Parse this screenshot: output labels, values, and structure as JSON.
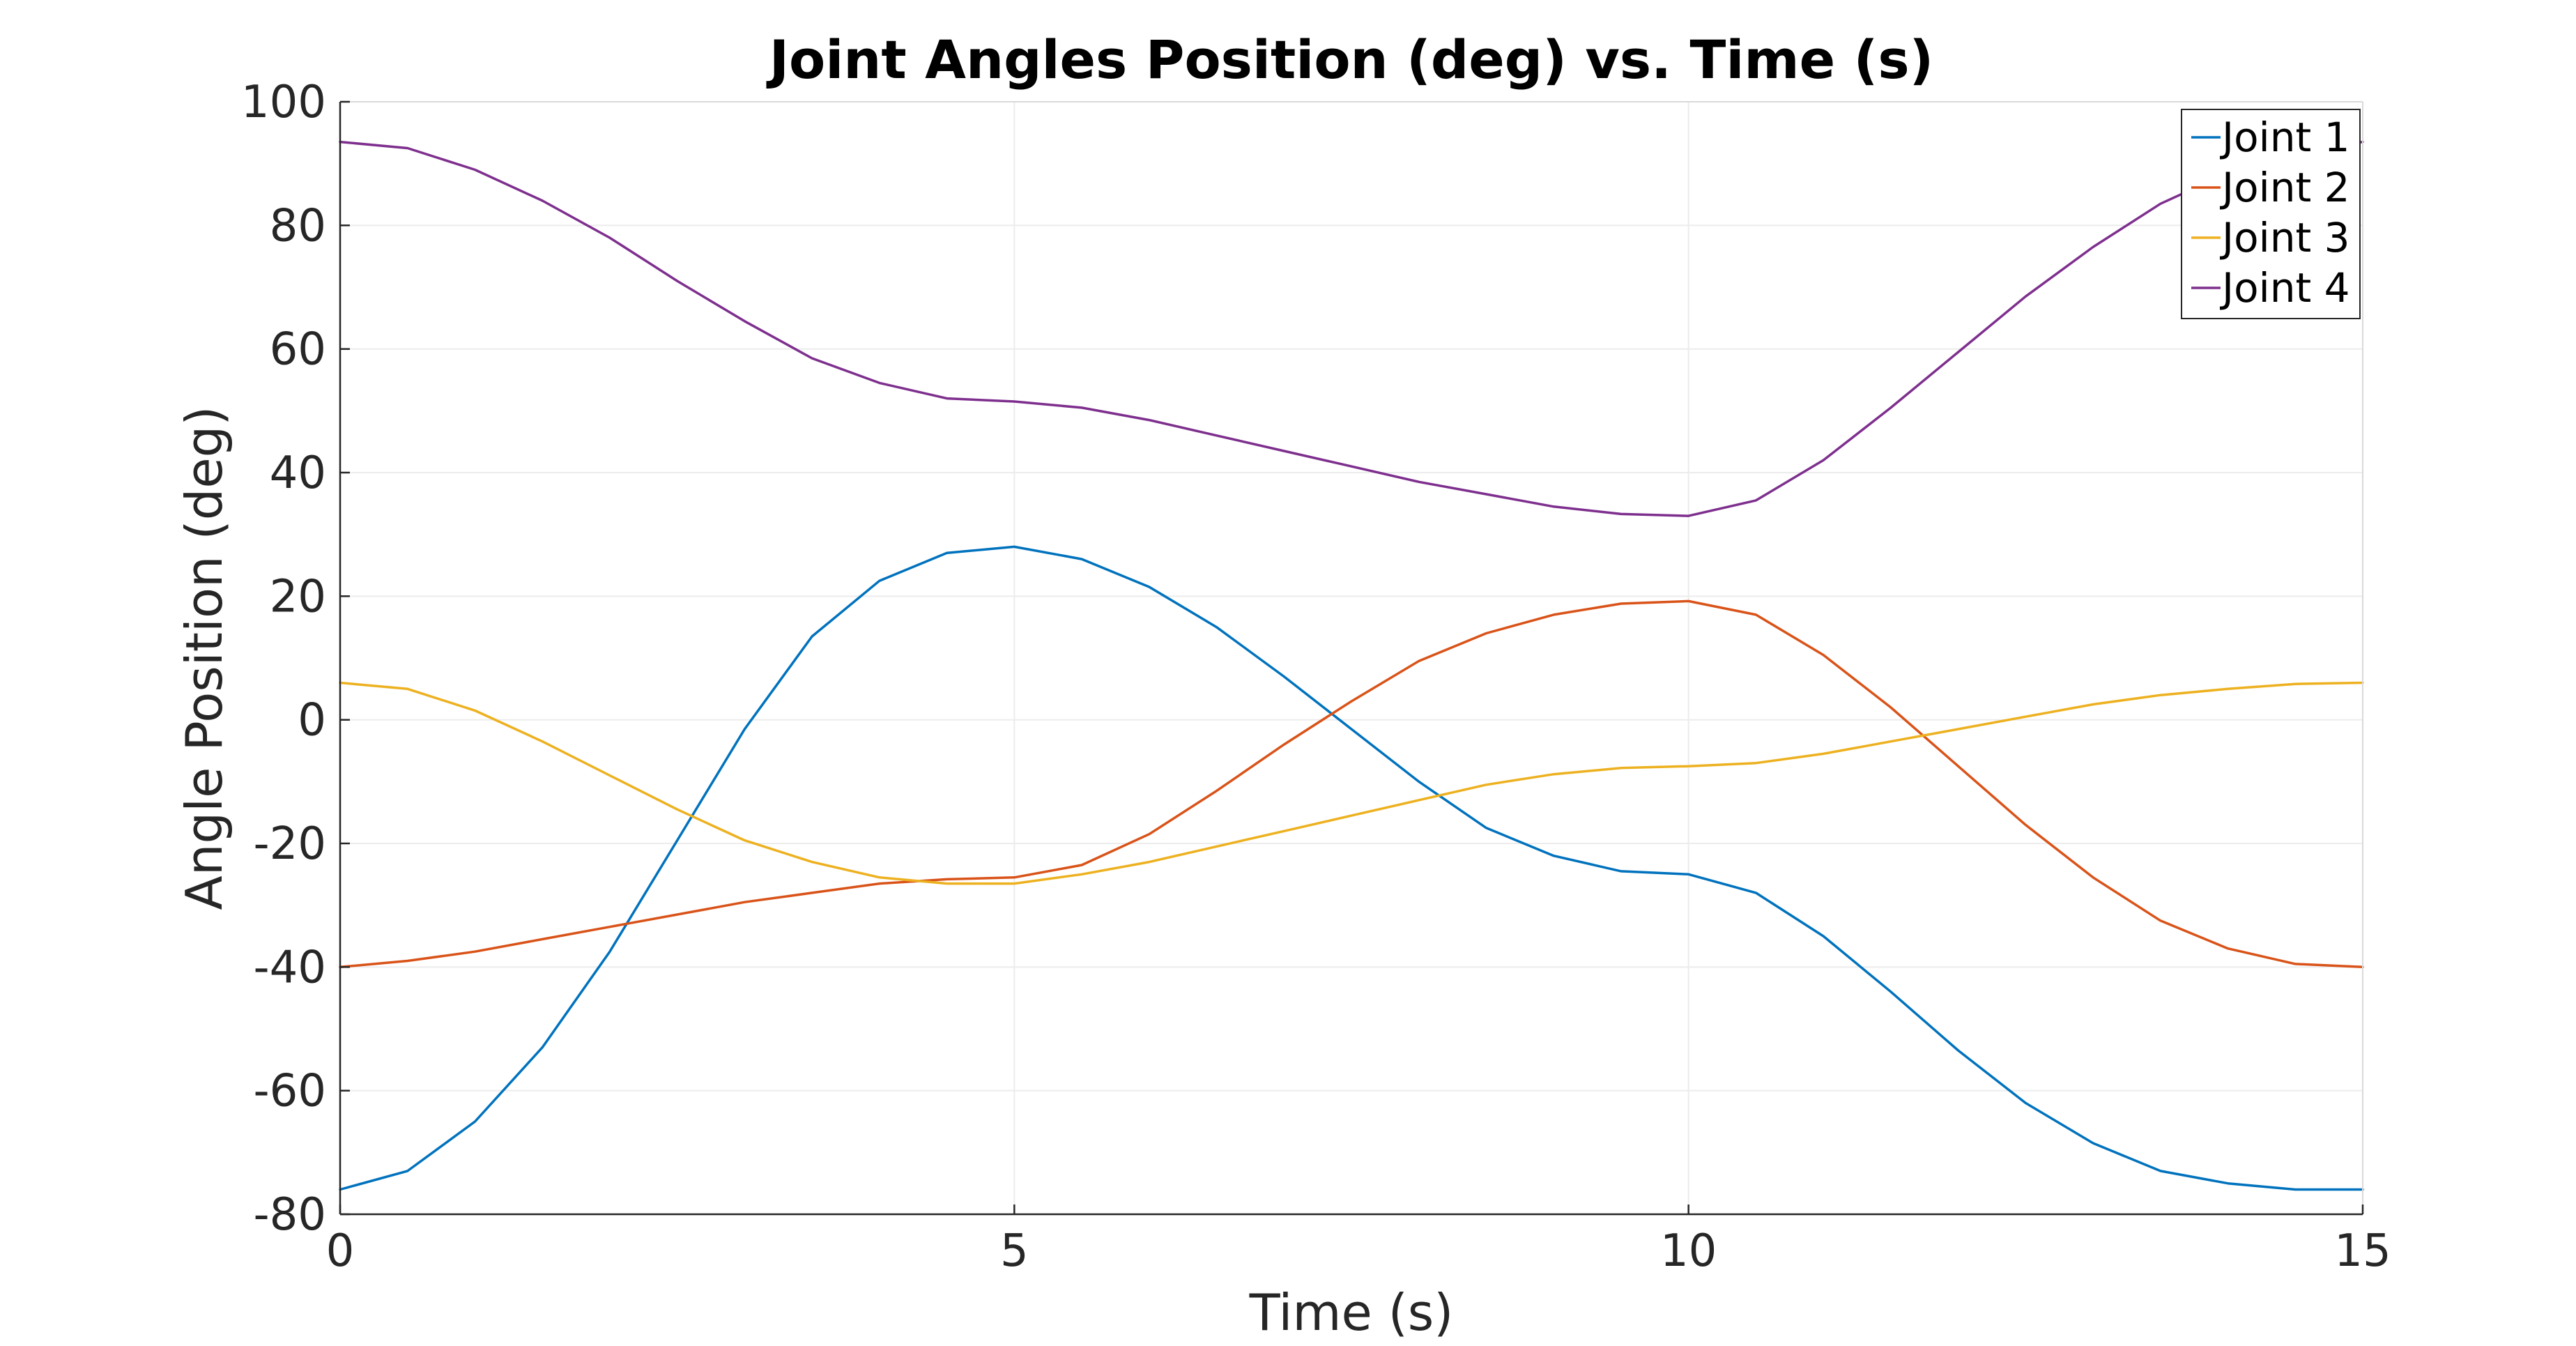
{
  "chart_data": {
    "type": "line",
    "title": "Joint Angles Position (deg) vs. Time (s)",
    "xlabel": "Time (s)",
    "ylabel": "Angle Position (deg)",
    "xlim": [
      0,
      15
    ],
    "ylim": [
      -80,
      100
    ],
    "xticks": [
      0,
      5,
      10,
      15
    ],
    "xtick_labels": [
      "0",
      "5",
      "10",
      "15"
    ],
    "yticks": [
      100,
      80,
      60,
      40,
      20,
      0,
      -20,
      -40,
      -60,
      -80
    ],
    "ytick_labels": [
      "100",
      "80",
      "60",
      "40",
      "20",
      "0",
      "-20",
      "-40",
      "-60",
      "-80"
    ],
    "grid": true,
    "legend_position": "top-right",
    "series": [
      {
        "name": "Joint 1",
        "color": "#0072BD",
        "x": [
          0,
          0.5,
          1,
          1.5,
          2,
          2.5,
          3,
          3.5,
          4,
          4.5,
          5,
          5.5,
          6,
          6.5,
          7,
          7.5,
          8,
          8.5,
          9,
          9.5,
          10,
          10.5,
          11,
          11.5,
          12,
          12.5,
          13,
          13.5,
          14,
          14.5,
          15
        ],
        "y": [
          -76,
          -73,
          -65,
          -53,
          -37.5,
          -19.5,
          -1.5,
          13.5,
          22.5,
          27,
          28,
          26,
          21.5,
          15,
          7,
          -1.5,
          -10,
          -17.5,
          -22,
          -24.5,
          -25,
          -28,
          -35,
          -44,
          -53.5,
          -62,
          -68.5,
          -73,
          -75,
          -76,
          -76
        ]
      },
      {
        "name": "Joint 2",
        "color": "#D95319",
        "x": [
          0,
          0.5,
          1,
          1.5,
          2,
          2.5,
          3,
          3.5,
          4,
          4.5,
          5,
          5.5,
          6,
          6.5,
          7,
          7.5,
          8,
          8.5,
          9,
          9.5,
          10,
          10.5,
          11,
          11.5,
          12,
          12.5,
          13,
          13.5,
          14,
          14.5,
          15
        ],
        "y": [
          -40,
          -39,
          -37.5,
          -35.5,
          -33.5,
          -31.5,
          -29.5,
          -28,
          -26.5,
          -25.8,
          -25.5,
          -23.5,
          -18.5,
          -11.5,
          -4,
          3,
          9.5,
          14,
          17,
          18.8,
          19.2,
          17,
          10.5,
          2,
          -7.5,
          -17,
          -25.5,
          -32.5,
          -37,
          -39.5,
          -40
        ]
      },
      {
        "name": "Joint 3",
        "color": "#EDB120",
        "x": [
          0,
          0.5,
          1,
          1.5,
          2,
          2.5,
          3,
          3.5,
          4,
          4.5,
          5,
          5.5,
          6,
          6.5,
          7,
          7.5,
          8,
          8.5,
          9,
          9.5,
          10,
          10.5,
          11,
          11.5,
          12,
          12.5,
          13,
          13.5,
          14,
          14.5,
          15
        ],
        "y": [
          6,
          5,
          1.5,
          -3.5,
          -9,
          -14.5,
          -19.5,
          -23,
          -25.5,
          -26.5,
          -26.5,
          -25,
          -23,
          -20.5,
          -18,
          -15.5,
          -13,
          -10.5,
          -8.8,
          -7.8,
          -7.5,
          -7,
          -5.5,
          -3.5,
          -1.5,
          0.5,
          2.5,
          4,
          5,
          5.8,
          6
        ]
      },
      {
        "name": "Joint 4",
        "color": "#7E2F8E",
        "x": [
          0,
          0.5,
          1,
          1.5,
          2,
          2.5,
          3,
          3.5,
          4,
          4.5,
          5,
          5.5,
          6,
          6.5,
          7,
          7.5,
          8,
          8.5,
          9,
          9.5,
          10,
          10.5,
          11,
          11.5,
          12,
          12.5,
          13,
          13.5,
          14,
          14.5,
          15
        ],
        "y": [
          93.5,
          92.5,
          89,
          84,
          78,
          71,
          64.5,
          58.5,
          54.5,
          52,
          51.5,
          50.5,
          48.5,
          46,
          43.5,
          41,
          38.5,
          36.5,
          34.5,
          33.3,
          33,
          35.5,
          42,
          50.5,
          59.5,
          68.5,
          76.5,
          83.5,
          88.5,
          92,
          93.5
        ]
      }
    ]
  }
}
